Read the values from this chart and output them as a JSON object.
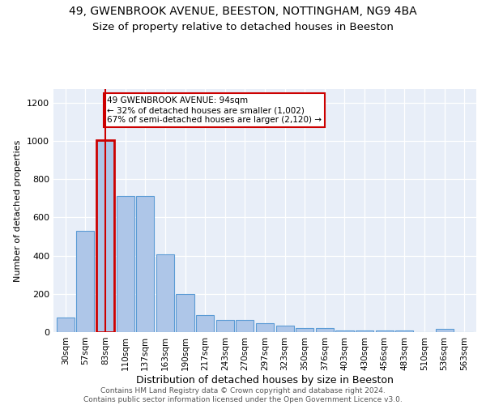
{
  "title": "49, GWENBROOK AVENUE, BEESTON, NOTTINGHAM, NG9 4BA",
  "subtitle": "Size of property relative to detached houses in Beeston",
  "xlabel": "Distribution of detached houses by size in Beeston",
  "ylabel": "Number of detached properties",
  "categories": [
    "30sqm",
    "57sqm",
    "83sqm",
    "110sqm",
    "137sqm",
    "163sqm",
    "190sqm",
    "217sqm",
    "243sqm",
    "270sqm",
    "297sqm",
    "323sqm",
    "350sqm",
    "376sqm",
    "403sqm",
    "430sqm",
    "456sqm",
    "483sqm",
    "510sqm",
    "536sqm",
    "563sqm"
  ],
  "values": [
    75,
    530,
    1002,
    710,
    710,
    405,
    197,
    90,
    65,
    65,
    47,
    32,
    20,
    20,
    10,
    10,
    10,
    10,
    2,
    15,
    2
  ],
  "bar_color": "#aec6e8",
  "bar_edge_color": "#5b9bd5",
  "highlight_index": 2,
  "highlight_color": "#cc0000",
  "annotation_text": "49 GWENBROOK AVENUE: 94sqm\n← 32% of detached houses are smaller (1,002)\n67% of semi-detached houses are larger (2,120) →",
  "annotation_box_color": "#ffffff",
  "annotation_box_edgecolor": "#cc0000",
  "ylim": [
    0,
    1270
  ],
  "yticks": [
    0,
    200,
    400,
    600,
    800,
    1000,
    1200
  ],
  "footer": "Contains HM Land Registry data © Crown copyright and database right 2024.\nContains public sector information licensed under the Open Government Licence v3.0.",
  "bg_color": "#e8eef8",
  "fig_bg": "#ffffff",
  "title_fontsize": 10,
  "subtitle_fontsize": 9.5
}
